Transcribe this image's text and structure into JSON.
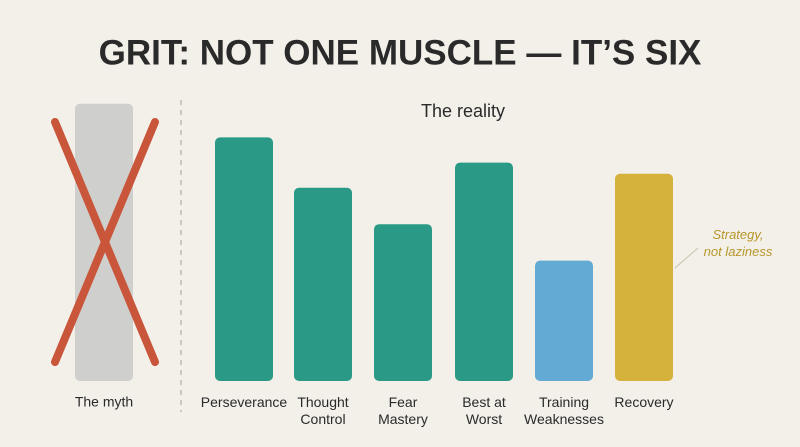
{
  "chart_data": {
    "type": "bar",
    "title": "GRIT: NOT ONE MUSCLE — IT’S SIX",
    "subtitle": "The reality",
    "myth": {
      "label": "The myth",
      "value": 99,
      "color": "#cfcfcd",
      "cross_color": "#c9563a"
    },
    "categories": [
      "Perseverance",
      "Thought\nControl",
      "Fear\nMastery",
      "Best at\nWorst",
      "Training\nWeaknesses",
      "Recovery"
    ],
    "values": [
      87,
      69,
      56,
      78,
      43,
      74
    ],
    "colors": [
      "#2a9a86",
      "#2a9a86",
      "#2a9a86",
      "#2a9a86",
      "#63aad4",
      "#d5b23c"
    ],
    "annotation": "Strategy,\nnot laziness",
    "annotation_color": "#b8962a",
    "ylim": [
      0,
      100
    ]
  }
}
